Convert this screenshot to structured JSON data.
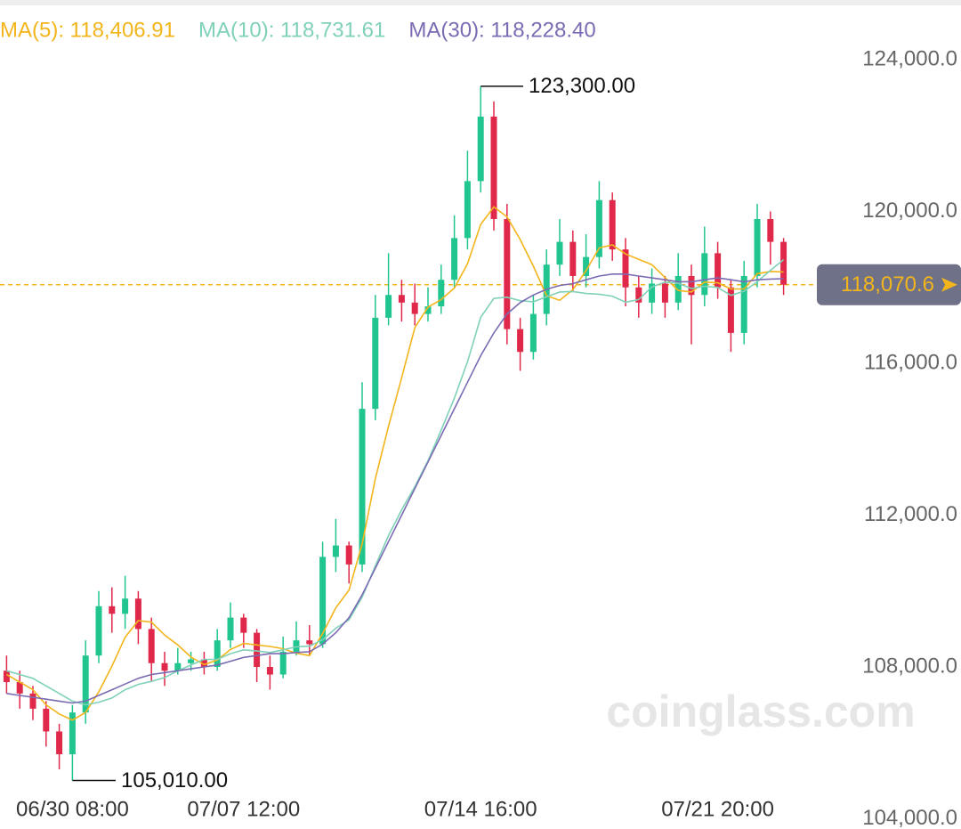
{
  "chart_data": {
    "type": "candlestick",
    "categories": [
      null,
      null,
      null,
      null,
      null,
      "06/30 08:00",
      null,
      null,
      null,
      null,
      null,
      null,
      null,
      null,
      null,
      null,
      null,
      null,
      "07/07 12:00",
      null,
      null,
      null,
      null,
      null,
      null,
      null,
      null,
      null,
      null,
      null,
      null,
      null,
      null,
      null,
      null,
      null,
      "07/14 16:00",
      null,
      null,
      null,
      null,
      null,
      null,
      null,
      null,
      null,
      null,
      null,
      null,
      null,
      null,
      null,
      null,
      null,
      "07/21 20:00",
      null,
      null,
      null,
      null,
      null
    ],
    "open": [
      107900,
      107600,
      107300,
      106900,
      106300,
      105700,
      106800,
      108300,
      109600,
      109400,
      109800,
      109000,
      108100,
      107900,
      108100,
      108200,
      108000,
      108700,
      109300,
      108900,
      108000,
      107800,
      108400,
      108700,
      108600,
      110900,
      111200,
      110700,
      114800,
      117200,
      117800,
      117600,
      117300,
      117500,
      118200,
      119300,
      120800,
      122500,
      119800,
      116900,
      116300,
      117300,
      118600,
      119200,
      118300,
      118800,
      120300,
      119000,
      118000,
      117600,
      118100,
      117600,
      118300,
      117800,
      118900,
      118000,
      116800,
      118300,
      119800,
      119200
    ],
    "high": [
      108300,
      107900,
      107500,
      107100,
      106500,
      107000,
      108700,
      110000,
      110100,
      110400,
      110000,
      109300,
      108400,
      108500,
      108400,
      108400,
      109000,
      109700,
      109400,
      109000,
      108300,
      108800,
      109200,
      109100,
      111300,
      111900,
      111300,
      115500,
      117800,
      118900,
      118200,
      118100,
      118000,
      118600,
      119900,
      121600,
      123300,
      122900,
      120200,
      117200,
      117800,
      119000,
      119800,
      119500,
      119400,
      120800,
      120500,
      119300,
      118300,
      118500,
      118300,
      118900,
      118600,
      119600,
      119200,
      118200,
      118700,
      120200,
      120000,
      119300
    ],
    "low": [
      107300,
      106900,
      106600,
      105900,
      105300,
      105010,
      106500,
      108100,
      108900,
      109000,
      108600,
      107600,
      107500,
      107800,
      107900,
      107800,
      107900,
      108500,
      108500,
      107600,
      107400,
      107700,
      108300,
      108300,
      108500,
      110500,
      110200,
      110500,
      114500,
      117000,
      117100,
      117000,
      117100,
      117300,
      118000,
      119000,
      120500,
      119500,
      116500,
      115800,
      116100,
      117000,
      118300,
      117900,
      118000,
      118500,
      118700,
      117500,
      117200,
      117300,
      117200,
      117400,
      116500,
      117500,
      117700,
      116300,
      116500,
      118000,
      118600,
      117800
    ],
    "close": [
      107600,
      107300,
      106900,
      106300,
      105700,
      106800,
      108300,
      109600,
      109400,
      109800,
      109000,
      108100,
      107900,
      108100,
      108200,
      108000,
      108700,
      109300,
      108900,
      108000,
      107800,
      108400,
      108700,
      108600,
      110900,
      111200,
      110700,
      114800,
      117200,
      117800,
      117600,
      117300,
      117500,
      118200,
      119300,
      120800,
      122500,
      119800,
      116900,
      116300,
      117300,
      118600,
      119200,
      118300,
      118800,
      120300,
      119000,
      118000,
      117600,
      118100,
      117600,
      118300,
      117800,
      118900,
      118000,
      116800,
      118300,
      119800,
      119200,
      118070.6
    ],
    "up_color": "#20c58f",
    "down_color": "#e0294a",
    "series": [
      {
        "name": "MA(5): 118,406.91",
        "color": "#f3b51c",
        "values": [
          107800,
          107600,
          107400,
          107000,
          106760,
          106600,
          106800,
          107340,
          108020,
          108780,
          109220,
          109180,
          108840,
          108580,
          108260,
          108060,
          108180,
          108460,
          108620,
          108580,
          108540,
          108480,
          108360,
          108300,
          108880,
          109560,
          110020,
          111240,
          112960,
          114340,
          115620,
          116940,
          117480,
          117680,
          117980,
          118620,
          119660,
          120120,
          119860,
          119260,
          118560,
          117780,
          117660,
          117940,
          118440,
          119040,
          119120,
          118880,
          118740,
          118600,
          118260,
          117920,
          117880,
          118140,
          118120,
          117960,
          117960,
          118360,
          118420,
          118406.91
        ]
      },
      {
        "name": "MA(10): 118,731.61",
        "color": "#7fd1b9",
        "values": [
          107900,
          107800,
          107700,
          107500,
          107300,
          107100,
          107000,
          107070,
          107180,
          107400,
          107540,
          107620,
          107720,
          107900,
          108050,
          108200,
          108200,
          108350,
          108450,
          108420,
          108380,
          108450,
          108530,
          108550,
          108720,
          109020,
          109240,
          109840,
          110660,
          111460,
          112140,
          112750,
          113430,
          114240,
          115080,
          116040,
          117210,
          117710,
          117740,
          117650,
          117620,
          117750,
          117880,
          117890,
          117840,
          117820,
          117770,
          117610,
          117680,
          118010,
          118140,
          118110,
          117970,
          118030,
          118000,
          117790,
          117900,
          118150,
          118450,
          118731.61
        ]
      },
      {
        "name": "MA(30): 118,228.40",
        "color": "#7b6bb3",
        "values": [
          107300,
          107250,
          107200,
          107150,
          107100,
          107050,
          107100,
          107250,
          107400,
          107550,
          107700,
          107800,
          107850,
          107900,
          107950,
          108000,
          108050,
          108150,
          108250,
          108300,
          108350,
          108350,
          108380,
          108400,
          108600,
          108900,
          109300,
          109900,
          110600,
          111300,
          112000,
          112700,
          113400,
          114100,
          114800,
          115500,
          116200,
          116800,
          117300,
          117600,
          117800,
          117950,
          118050,
          118100,
          118200,
          118300,
          118350,
          118350,
          118300,
          118250,
          118200,
          118150,
          118150,
          118200,
          118250,
          118200,
          118150,
          118200,
          118220,
          118228.4
        ]
      }
    ],
    "ylim": [
      103730,
      125572
    ],
    "yticks": [
      {
        "value": 104000,
        "label": "104,000.0"
      },
      {
        "value": 108000,
        "label": "108,000.0"
      },
      {
        "value": 112000,
        "label": "112,000.0"
      },
      {
        "value": 116000,
        "label": "116,000.0"
      },
      {
        "value": 120000,
        "label": "120,000.0"
      },
      {
        "value": 124000,
        "label": "124,000.0"
      }
    ],
    "last_price": {
      "value": 118070.6,
      "label": "118,070.6"
    },
    "high_mark": {
      "value": 123300,
      "label": "123,300.00"
    },
    "low_mark": {
      "value": 105010,
      "label": "105,010.00"
    },
    "watermark": "coinglass.com"
  }
}
